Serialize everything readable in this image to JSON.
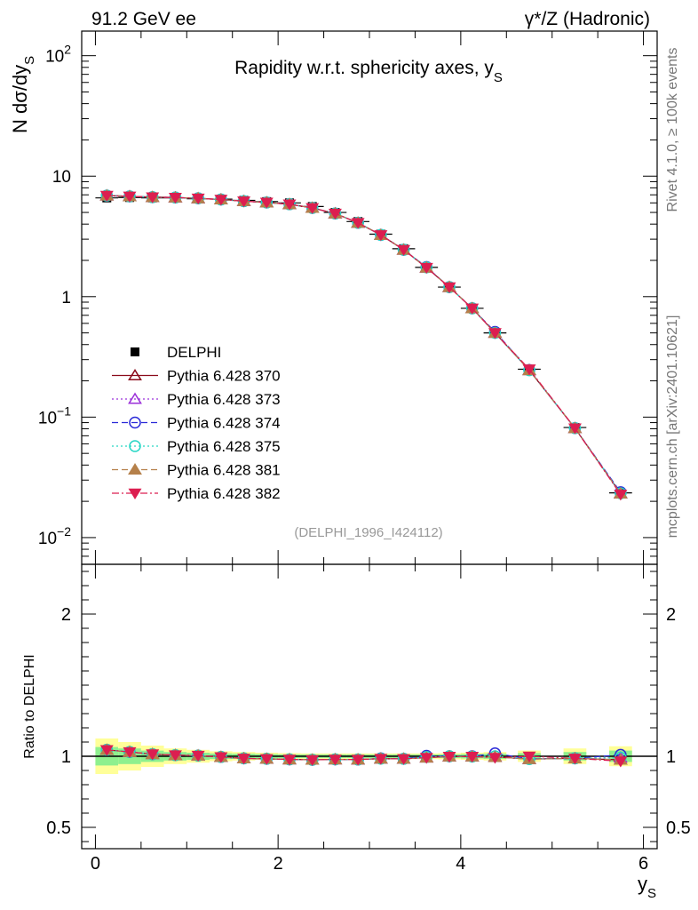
{
  "header": {
    "left": "91.2 GeV ee",
    "right": "γ*/Z (Hadronic)"
  },
  "side_labels": {
    "rivet": "Rivet 4.1.0, ≥ 100k events",
    "mcplots": "mcplots.cern.ch [arXiv:2401.10621]"
  },
  "chart_data": [
    {
      "panel": "main",
      "type": "scatter",
      "title": "Rapidity w.r.t. sphericity axes, y",
      "title_subscript": "S",
      "ylabel": "N  dσ/dy",
      "ylabel_subscript": "S",
      "yscale": "log",
      "ylim": [
        0.006,
        160
      ],
      "xlim": [
        -0.15,
        6.15
      ],
      "x_ticks": [
        0,
        2,
        4,
        6
      ],
      "y_tick_labels": [
        {
          "value": 0.01,
          "base": "10",
          "exp": "−2"
        },
        {
          "value": 0.1,
          "base": "10",
          "exp": "−1"
        },
        {
          "value": 1,
          "base": "1",
          "exp": ""
        },
        {
          "value": 10,
          "base": "10",
          "exp": ""
        },
        {
          "value": 100,
          "base": "10",
          "exp": "2"
        }
      ],
      "watermark": "(DELPHI_1996_I424112)",
      "x": [
        0.125,
        0.375,
        0.625,
        0.875,
        1.125,
        1.375,
        1.625,
        1.875,
        2.125,
        2.375,
        2.625,
        2.875,
        3.125,
        3.375,
        3.625,
        3.875,
        4.125,
        4.375,
        4.75,
        5.25,
        5.75
      ],
      "series": [
        {
          "name": "DELPHI",
          "marker": "square-filled",
          "color": "#000000",
          "line": "none",
          "values": [
            6.6,
            6.65,
            6.6,
            6.6,
            6.5,
            6.45,
            6.3,
            6.15,
            6.0,
            5.6,
            5.0,
            4.2,
            3.3,
            2.5,
            1.75,
            1.2,
            0.8,
            0.5,
            0.25,
            0.082,
            0.0235
          ]
        },
        {
          "name": "Pythia 6.428 370",
          "marker": "triangle-open",
          "color": "#8b0a1a",
          "line": "solid",
          "values": [
            6.9,
            6.8,
            6.7,
            6.65,
            6.55,
            6.4,
            6.2,
            6.05,
            5.85,
            5.45,
            4.9,
            4.1,
            3.25,
            2.45,
            1.74,
            1.2,
            0.8,
            0.5,
            0.245,
            0.081,
            0.0232
          ]
        },
        {
          "name": "Pythia 6.428 373",
          "marker": "triangle-open",
          "color": "#9b30d9",
          "line": "dotted",
          "values": [
            6.9,
            6.8,
            6.7,
            6.65,
            6.55,
            6.4,
            6.2,
            6.05,
            5.85,
            5.45,
            4.9,
            4.1,
            3.25,
            2.45,
            1.74,
            1.2,
            0.8,
            0.5,
            0.245,
            0.081,
            0.0233
          ]
        },
        {
          "name": "Pythia 6.428 374",
          "marker": "circle-open",
          "color": "#2a2ad8",
          "line": "dashed",
          "values": [
            6.9,
            6.8,
            6.7,
            6.65,
            6.55,
            6.4,
            6.2,
            6.05,
            5.85,
            5.45,
            4.9,
            4.1,
            3.25,
            2.45,
            1.76,
            1.2,
            0.8,
            0.51,
            0.246,
            0.081,
            0.0238
          ]
        },
        {
          "name": "Pythia 6.428 375",
          "marker": "circle-open",
          "color": "#25d6c4",
          "line": "dotted",
          "values": [
            6.9,
            6.8,
            6.7,
            6.65,
            6.55,
            6.4,
            6.2,
            6.05,
            5.85,
            5.45,
            4.9,
            4.1,
            3.25,
            2.45,
            1.75,
            1.2,
            0.8,
            0.5,
            0.245,
            0.081,
            0.0233
          ]
        },
        {
          "name": "Pythia 6.428 381",
          "marker": "triangle-filled",
          "color": "#b5804a",
          "line": "dashed",
          "values": [
            6.9,
            6.8,
            6.7,
            6.65,
            6.55,
            6.4,
            6.2,
            6.05,
            5.85,
            5.45,
            4.9,
            4.1,
            3.25,
            2.45,
            1.74,
            1.2,
            0.8,
            0.5,
            0.245,
            0.081,
            0.0232
          ]
        },
        {
          "name": "Pythia 6.428 382",
          "marker": "triangle-down-filled",
          "color": "#dc1e50",
          "line": "dashdot",
          "values": [
            6.9,
            6.8,
            6.7,
            6.65,
            6.55,
            6.4,
            6.2,
            6.05,
            5.85,
            5.45,
            4.9,
            4.1,
            3.25,
            2.45,
            1.74,
            1.2,
            0.8,
            0.5,
            0.25,
            0.081,
            0.0228
          ]
        }
      ],
      "legend_position": "center-left"
    },
    {
      "panel": "ratio",
      "type": "scatter",
      "xlabel": "y",
      "xlabel_subscript": "S",
      "ylabel": "Ratio to DELPHI",
      "ylim": [
        0.35,
        2.35
      ],
      "y_ticks": [
        0.5,
        1,
        2
      ],
      "y_tick_labels": [
        "0.5",
        "1",
        "2"
      ],
      "x_tick_labels": [
        "0",
        "2",
        "4",
        "6"
      ],
      "reference_line": 1,
      "band_colors": {
        "inner": "#8ef08e",
        "outer": "#ffff99"
      },
      "band_inner_halfwidth": [
        0.065,
        0.055,
        0.04,
        0.03,
        0.025,
        0.02,
        0.018,
        0.015,
        0.013,
        0.012,
        0.012,
        0.012,
        0.012,
        0.012,
        0.012,
        0.013,
        0.015,
        0.018,
        0.022,
        0.03,
        0.04
      ],
      "band_outer_halfwidth": [
        0.125,
        0.1,
        0.075,
        0.055,
        0.045,
        0.035,
        0.03,
        0.025,
        0.022,
        0.02,
        0.02,
        0.02,
        0.02,
        0.02,
        0.02,
        0.022,
        0.025,
        0.03,
        0.04,
        0.055,
        0.07
      ],
      "series": [
        {
          "name": "Pythia 6.428 370",
          "values": [
            1.045,
            1.03,
            1.015,
            1.008,
            1.005,
            0.995,
            0.985,
            0.982,
            0.978,
            0.975,
            0.978,
            0.977,
            0.983,
            0.982,
            0.992,
            0.998,
            0.998,
            0.995,
            0.98,
            0.985,
            0.975
          ]
        },
        {
          "name": "Pythia 6.428 373",
          "values": [
            1.045,
            1.03,
            1.015,
            1.008,
            1.005,
            0.995,
            0.985,
            0.982,
            0.978,
            0.975,
            0.978,
            0.977,
            0.983,
            0.982,
            0.99,
            0.998,
            0.998,
            0.998,
            0.98,
            0.985,
            0.99
          ]
        },
        {
          "name": "Pythia 6.428 374",
          "values": [
            1.045,
            1.03,
            1.015,
            1.008,
            1.005,
            0.995,
            0.985,
            0.982,
            0.978,
            0.975,
            0.978,
            0.977,
            0.985,
            0.982,
            1.003,
            1.0,
            1.0,
            1.02,
            0.982,
            0.985,
            1.01
          ]
        },
        {
          "name": "Pythia 6.428 375",
          "values": [
            1.045,
            1.03,
            1.015,
            1.008,
            1.005,
            0.995,
            0.985,
            0.982,
            0.978,
            0.975,
            0.978,
            0.977,
            0.983,
            0.982,
            0.995,
            1.0,
            0.998,
            1.0,
            0.98,
            0.985,
            0.99
          ]
        },
        {
          "name": "Pythia 6.428 381",
          "values": [
            1.045,
            1.03,
            1.015,
            1.008,
            1.005,
            0.995,
            0.985,
            0.982,
            0.978,
            0.975,
            0.978,
            0.977,
            0.983,
            0.982,
            0.99,
            0.998,
            0.998,
            0.995,
            0.98,
            0.985,
            0.975
          ]
        },
        {
          "name": "Pythia 6.428 382",
          "values": [
            1.045,
            1.03,
            1.015,
            1.008,
            1.005,
            0.995,
            0.985,
            0.982,
            0.978,
            0.975,
            0.978,
            0.977,
            0.983,
            0.982,
            0.99,
            0.998,
            0.998,
            0.99,
            1.0,
            0.985,
            0.965
          ]
        }
      ]
    }
  ]
}
